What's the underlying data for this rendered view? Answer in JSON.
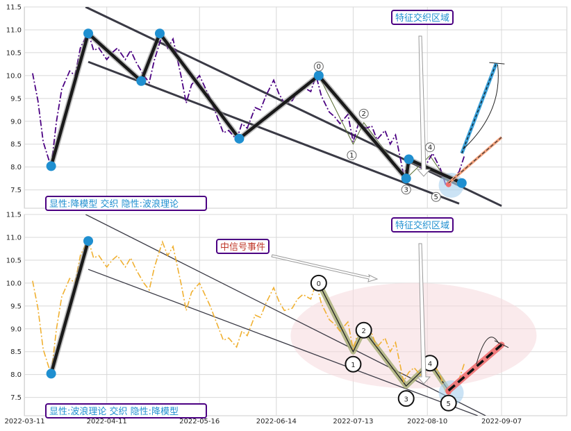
{
  "chart_data": {
    "type": "line",
    "x_ticks": [
      "2022-03-11",
      "2022-04-11",
      "2022-05-16",
      "2022-06-14",
      "2022-07-13",
      "2022-08-10",
      "2022-09-07"
    ],
    "y_ticks": [
      7.5,
      8.0,
      8.5,
      9.0,
      9.5,
      10.0,
      10.5,
      11.0,
      11.5
    ],
    "ylim": [
      7.1,
      11.5
    ],
    "grid": true,
    "colors": {
      "top_price": "#4b0082",
      "bottom_price": "#f0b030",
      "node": "#1f8fd0",
      "trend": "#3a3a45",
      "blue_proj": "#3aa0d8",
      "salmon_proj": "#f4a07a",
      "red_proj": "#f07070"
    },
    "price": [
      {
        "d": "2022-03-14",
        "v": 10.05
      },
      {
        "d": "2022-03-16",
        "v": 9.45
      },
      {
        "d": "2022-03-18",
        "v": 8.55
      },
      {
        "d": "2022-03-21",
        "v": 8.0
      },
      {
        "d": "2022-03-23",
        "v": 9.0
      },
      {
        "d": "2022-03-25",
        "v": 9.7
      },
      {
        "d": "2022-03-28",
        "v": 10.1
      },
      {
        "d": "2022-03-30",
        "v": 10.0
      },
      {
        "d": "2022-04-01",
        "v": 10.6
      },
      {
        "d": "2022-04-04",
        "v": 10.95
      },
      {
        "d": "2022-04-06",
        "v": 10.55
      },
      {
        "d": "2022-04-08",
        "v": 10.6
      },
      {
        "d": "2022-04-11",
        "v": 10.35
      },
      {
        "d": "2022-04-13",
        "v": 10.5
      },
      {
        "d": "2022-04-15",
        "v": 10.6
      },
      {
        "d": "2022-04-18",
        "v": 10.35
      },
      {
        "d": "2022-04-20",
        "v": 10.55
      },
      {
        "d": "2022-04-22",
        "v": 10.3
      },
      {
        "d": "2022-04-25",
        "v": 10.0
      },
      {
        "d": "2022-04-27",
        "v": 9.85
      },
      {
        "d": "2022-04-29",
        "v": 10.35
      },
      {
        "d": "2022-05-02",
        "v": 10.9
      },
      {
        "d": "2022-05-04",
        "v": 10.6
      },
      {
        "d": "2022-05-06",
        "v": 10.8
      },
      {
        "d": "2022-05-09",
        "v": 10.0
      },
      {
        "d": "2022-05-11",
        "v": 9.4
      },
      {
        "d": "2022-05-13",
        "v": 9.8
      },
      {
        "d": "2022-05-16",
        "v": 10.0
      },
      {
        "d": "2022-05-18",
        "v": 9.75
      },
      {
        "d": "2022-05-20",
        "v": 9.5
      },
      {
        "d": "2022-05-23",
        "v": 9.05
      },
      {
        "d": "2022-05-25",
        "v": 8.75
      },
      {
        "d": "2022-05-27",
        "v": 8.8
      },
      {
        "d": "2022-05-30",
        "v": 8.6
      },
      {
        "d": "2022-06-01",
        "v": 8.95
      },
      {
        "d": "2022-06-03",
        "v": 8.85
      },
      {
        "d": "2022-06-06",
        "v": 9.3
      },
      {
        "d": "2022-06-08",
        "v": 9.25
      },
      {
        "d": "2022-06-10",
        "v": 9.55
      },
      {
        "d": "2022-06-13",
        "v": 9.9
      },
      {
        "d": "2022-06-15",
        "v": 9.6
      },
      {
        "d": "2022-06-17",
        "v": 9.4
      },
      {
        "d": "2022-06-20",
        "v": 9.45
      },
      {
        "d": "2022-06-22",
        "v": 9.65
      },
      {
        "d": "2022-06-24",
        "v": 9.75
      },
      {
        "d": "2022-06-27",
        "v": 9.65
      },
      {
        "d": "2022-06-29",
        "v": 10.0
      },
      {
        "d": "2022-07-01",
        "v": 9.55
      },
      {
        "d": "2022-07-04",
        "v": 9.2
      },
      {
        "d": "2022-07-06",
        "v": 9.1
      },
      {
        "d": "2022-07-08",
        "v": 8.95
      },
      {
        "d": "2022-07-11",
        "v": 9.15
      },
      {
        "d": "2022-07-13",
        "v": 8.55
      },
      {
        "d": "2022-07-15",
        "v": 8.95
      },
      {
        "d": "2022-07-18",
        "v": 8.85
      },
      {
        "d": "2022-07-20",
        "v": 8.9
      },
      {
        "d": "2022-07-22",
        "v": 8.6
      },
      {
        "d": "2022-07-25",
        "v": 8.8
      },
      {
        "d": "2022-07-27",
        "v": 8.5
      },
      {
        "d": "2022-07-29",
        "v": 8.7
      },
      {
        "d": "2022-08-01",
        "v": 7.85
      },
      {
        "d": "2022-08-03",
        "v": 8.05
      },
      {
        "d": "2022-08-05",
        "v": 8.15
      },
      {
        "d": "2022-08-08",
        "v": 7.95
      },
      {
        "d": "2022-08-10",
        "v": 8.1
      },
      {
        "d": "2022-08-12",
        "v": 8.3
      },
      {
        "d": "2022-08-15",
        "v": 7.95
      },
      {
        "d": "2022-08-17",
        "v": 7.6
      },
      {
        "d": "2022-08-19",
        "v": 7.7
      },
      {
        "d": "2022-08-22",
        "v": 7.9
      },
      {
        "d": "2022-08-24",
        "v": 8.25
      }
    ],
    "panels": [
      {
        "legend_text": "显性:降模型 交织 隐性:波浪理论",
        "title_annotation": "特征交织区域",
        "price_color": "#4b0082",
        "trend_lines": [
          {
            "start": {
              "d": "2022-04-03",
              "v": 11.5
            },
            "end": {
              "d": "2022-09-07",
              "v": 7.15
            }
          },
          {
            "start": {
              "d": "2022-04-04",
              "v": 10.3
            },
            "end": {
              "d": "2022-08-22",
              "v": 7.2
            }
          }
        ],
        "zigzag": [
          {
            "d": "2022-03-21",
            "v": 8.02
          },
          {
            "d": "2022-04-04",
            "v": 10.92
          },
          {
            "d": "2022-04-24",
            "v": 9.88
          },
          {
            "d": "2022-05-01",
            "v": 10.92
          },
          {
            "d": "2022-05-31",
            "v": 8.62
          },
          {
            "d": "2022-06-30",
            "v": 10.0
          },
          {
            "d": "2022-08-02",
            "v": 7.75
          },
          {
            "d": "2022-08-03",
            "v": 8.17
          },
          {
            "d": "2022-08-23",
            "v": 7.65
          }
        ],
        "wave_points": [
          {
            "label": "0",
            "d": "2022-06-30",
            "v": 10.0
          },
          {
            "label": "1",
            "d": "2022-07-13",
            "v": 8.5
          },
          {
            "label": "2",
            "d": "2022-07-17",
            "v": 8.97
          },
          {
            "label": "3",
            "d": "2022-08-02",
            "v": 7.75
          },
          {
            "label": "4",
            "d": "2022-08-11",
            "v": 8.25
          },
          {
            "label": "5",
            "d": "2022-08-18",
            "v": 7.65
          }
        ],
        "projections": [
          {
            "start": {
              "d": "2022-08-23",
              "v": 8.3
            },
            "end": {
              "d": "2022-09-05",
              "v": 10.27
            },
            "kind": "blue"
          },
          {
            "start": {
              "d": "2022-08-18",
              "v": 7.65
            },
            "end": {
              "d": "2022-09-07",
              "v": 8.65
            },
            "kind": "salmon"
          }
        ]
      },
      {
        "legend_text": "显性:波浪理论 交织 隐性:降模型",
        "title_annotation": "特征交织区域",
        "signal_annotation": "中信号事件",
        "price_color": "#f0b030",
        "trend_lines": [
          {
            "start": {
              "d": "2022-04-03",
              "v": 11.5
            },
            "end": {
              "d": "2022-09-01",
              "v": 7.1
            }
          },
          {
            "start": {
              "d": "2022-04-04",
              "v": 10.3
            },
            "end": {
              "d": "2022-08-29",
              "v": 7.1
            }
          }
        ],
        "zigzag": [
          {
            "d": "2022-03-21",
            "v": 8.02
          },
          {
            "d": "2022-04-04",
            "v": 10.92
          }
        ],
        "wave_points": [
          {
            "label": "0",
            "d": "2022-06-30",
            "v": 10.0
          },
          {
            "label": "1",
            "d": "2022-07-13",
            "v": 8.5
          },
          {
            "label": "2",
            "d": "2022-07-17",
            "v": 8.97
          },
          {
            "label": "3",
            "d": "2022-08-02",
            "v": 7.75
          },
          {
            "label": "4",
            "d": "2022-08-11",
            "v": 8.25
          },
          {
            "label": "5",
            "d": "2022-08-18",
            "v": 7.65
          }
        ],
        "projections": [
          {
            "start": {
              "d": "2022-08-18",
              "v": 7.65
            },
            "end": {
              "d": "2022-09-07",
              "v": 8.65
            },
            "kind": "red"
          }
        ]
      }
    ]
  }
}
